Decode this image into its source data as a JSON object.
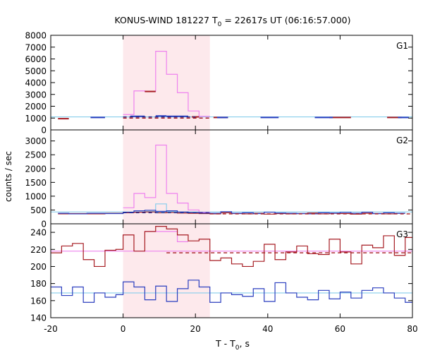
{
  "chart_data": {
    "type": "line",
    "title": "KONUS-WIND 181227 T",
    "title_sub": "0",
    "title_rest": " = 22617s UT (06:16:57.000)",
    "xlabel": "T - T",
    "xlabel_sub": "0",
    "xlabel_rest": ", s",
    "ylabel": "counts / sec",
    "xlim": [
      -20,
      80
    ],
    "x_ticks": [
      "-20",
      "0",
      "20",
      "40",
      "60",
      "80"
    ],
    "x_tick_values": [
      -20,
      0,
      20,
      40,
      60,
      80
    ],
    "highlight_interval": [
      0,
      24
    ],
    "colors": {
      "highlight": "#fde9ec",
      "pink": "#ee82ee",
      "cyan": "#87ceeb",
      "blue": "#2b3fbf",
      "darkred": "#a61b22",
      "dashed_blue": "#1f2a8c",
      "dashed_red": "#a61b22",
      "g3_bg": "#ee82ee"
    },
    "panels": [
      {
        "name": "G1",
        "ylim": [
          0,
          8000
        ],
        "y_ticks": [
          "0",
          "1000",
          "2000",
          "3000",
          "4000",
          "5000",
          "6000",
          "7000",
          "8000"
        ],
        "y_tick_values": [
          0,
          1000,
          2000,
          3000,
          4000,
          5000,
          6000,
          7000,
          8000
        ],
        "series": [
          {
            "color": "cyan",
            "kind": "hline",
            "y": 1100,
            "x": [
              -20,
              80
            ]
          },
          {
            "color": "pink",
            "kind": "step",
            "edges": [
              0,
              3,
              6,
              9,
              12,
              15,
              18,
              21,
              24
            ],
            "values": [
              1300,
              3300,
              3250,
              6650,
              4700,
              3150,
              1600,
              1150
            ]
          },
          {
            "color": "darkred",
            "kind": "segments",
            "segs": [
              [
                -18,
                -15,
                950
              ],
              [
                6,
                9,
                3250
              ],
              [
                19,
                21,
                1100
              ],
              [
                25,
                29,
                1050
              ],
              [
                57,
                63,
                1050
              ],
              [
                73,
                77,
                1050
              ]
            ]
          },
          {
            "color": "blue",
            "kind": "segments",
            "segs": [
              [
                -9,
                -5,
                1050
              ],
              [
                2,
                6,
                1150
              ],
              [
                9,
                12,
                1180
              ],
              [
                12,
                18,
                1150
              ],
              [
                26,
                29,
                1050
              ],
              [
                38,
                43,
                1050
              ],
              [
                53,
                58,
                1050
              ],
              [
                76,
                79,
                1050
              ]
            ]
          },
          {
            "color": "dashed_blue",
            "kind": "dashed",
            "y": 1100,
            "x": [
              0,
              20
            ]
          },
          {
            "color": "dashed_red",
            "kind": "dashed",
            "y": 1000,
            "x": [
              0,
              24
            ]
          }
        ]
      },
      {
        "name": "G2",
        "ylim": [
          0,
          3400
        ],
        "y_ticks": [
          "0",
          "500",
          "1000",
          "1500",
          "2000",
          "2500",
          "3000"
        ],
        "y_tick_values": [
          0,
          500,
          1000,
          1500,
          2000,
          2500,
          3000
        ],
        "series": [
          {
            "color": "cyan",
            "kind": "hline",
            "y": 430,
            "x": [
              -20,
              80
            ]
          },
          {
            "color": "pink",
            "kind": "step",
            "edges": [
              0,
              3,
              6,
              9,
              12,
              15,
              18,
              21,
              24
            ],
            "values": [
              580,
              1100,
              950,
              2850,
              1100,
              750,
              500,
              420
            ]
          },
          {
            "color": "cyan",
            "kind": "step",
            "edges": [
              6,
              9,
              12,
              15,
              18
            ],
            "values": [
              450,
              720,
              450,
              400
            ]
          },
          {
            "color": "darkred",
            "kind": "step",
            "edges": [
              -18,
              -15,
              -10,
              -5,
              0,
              3,
              6,
              9,
              12,
              15,
              18,
              21,
              24,
              27,
              30,
              33,
              36,
              39,
              42,
              45,
              48,
              51,
              54,
              57,
              60,
              63,
              66,
              69,
              72,
              75,
              78
            ],
            "values": [
              360,
              370,
              360,
              380,
              400,
              420,
              430,
              400,
              410,
              390,
              380,
              370,
              360,
              400,
              370,
              360,
              380,
              350,
              370,
              360,
              370,
              390,
              360,
              380,
              370,
              350,
              380,
              370,
              360,
              380
            ]
          },
          {
            "color": "blue",
            "kind": "step",
            "edges": [
              -18,
              -15,
              -10,
              -5,
              0,
              3,
              6,
              9,
              12,
              15,
              18,
              21,
              24,
              27,
              30,
              33,
              36,
              39,
              42,
              45,
              48,
              51,
              54,
              57,
              60,
              63,
              66,
              69,
              72,
              75,
              78
            ],
            "values": [
              380,
              360,
              380,
              370,
              420,
              470,
              490,
              450,
              470,
              430,
              410,
              390,
              380,
              440,
              380,
              400,
              370,
              420,
              390,
              380,
              370,
              360,
              400,
              390,
              410,
              380,
              420,
              370,
              400,
              380
            ]
          },
          {
            "color": "dashed_blue",
            "kind": "dashed",
            "y": 400,
            "x": [
              0,
              24
            ]
          },
          {
            "color": "dashed_red",
            "kind": "dashed",
            "y": 360,
            "x": [
              24,
              80
            ]
          }
        ]
      },
      {
        "name": "G3",
        "ylim": [
          140,
          250
        ],
        "y_ticks": [
          "140",
          "160",
          "180",
          "200",
          "220",
          "240"
        ],
        "y_tick_values": [
          140,
          160,
          180,
          200,
          220,
          240
        ],
        "series": [
          {
            "color": "g3_bg",
            "kind": "hline",
            "y": 218,
            "x": [
              -20,
              80
            ]
          },
          {
            "color": "cyan",
            "kind": "hline",
            "y": 169,
            "x": [
              -20,
              80
            ]
          },
          {
            "color": "pink",
            "kind": "step",
            "edges": [
              6,
              9,
              12,
              15,
              18
            ],
            "values": [
              241,
              241,
              241,
              229
            ]
          },
          {
            "color": "darkred",
            "kind": "step",
            "edges": [
              -20,
              -17,
              -14,
              -11,
              -8,
              -5,
              -2,
              0,
              3,
              6,
              9,
              12,
              15,
              18,
              21,
              24,
              27,
              30,
              33,
              36,
              39,
              42,
              45,
              48,
              51,
              54,
              57,
              60,
              63,
              66,
              69,
              72,
              75,
              78,
              80
            ],
            "values": [
              216,
              224,
              227,
              208,
              200,
              219,
              220,
              237,
              218,
              241,
              247,
              244,
              237,
              230,
              232,
              207,
              210,
              203,
              200,
              206,
              226,
              208,
              217,
              224,
              215,
              214,
              232,
              217,
              203,
              225,
              222,
              236,
              213,
              234
            ]
          },
          {
            "color": "blue",
            "kind": "step",
            "edges": [
              -20,
              -17,
              -14,
              -11,
              -8,
              -5,
              -2,
              0,
              3,
              6,
              9,
              12,
              15,
              18,
              21,
              24,
              27,
              30,
              33,
              36,
              39,
              42,
              45,
              48,
              51,
              54,
              57,
              60,
              63,
              66,
              69,
              72,
              75,
              78,
              80
            ],
            "values": [
              176,
              166,
              176,
              158,
              169,
              164,
              167,
              182,
              176,
              161,
              177,
              159,
              174,
              184,
              176,
              158,
              169,
              167,
              165,
              174,
              159,
              181,
              169,
              164,
              161,
              172,
              162,
              170,
              163,
              172,
              175,
              169,
              163,
              158
            ]
          },
          {
            "color": "dashed_red",
            "kind": "dashed",
            "y": 216,
            "x": [
              12,
              80
            ]
          }
        ]
      }
    ]
  }
}
